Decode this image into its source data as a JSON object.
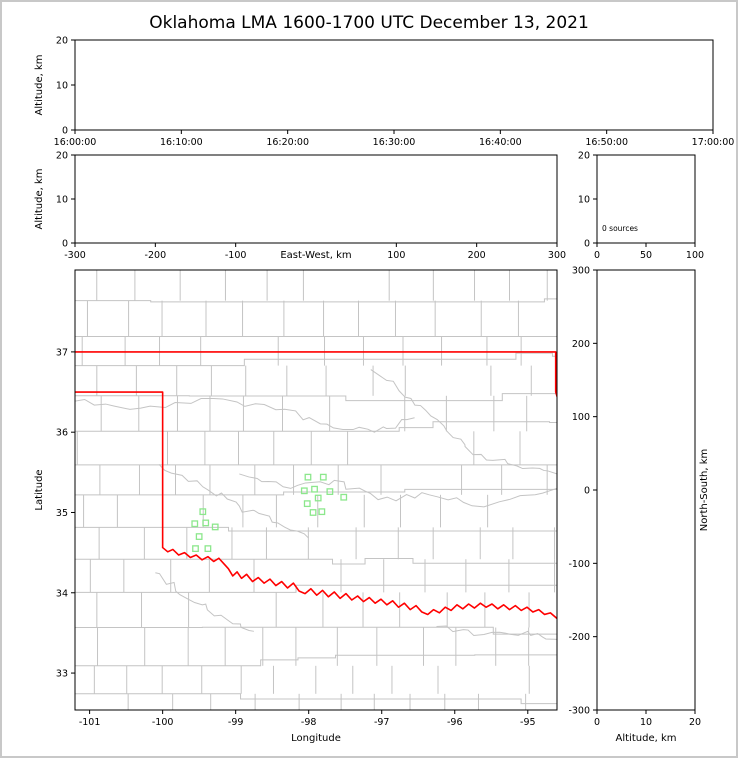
{
  "figure": {
    "title": "Oklahoma LMA 1600-1700 UTC December 13, 2021"
  },
  "colors": {
    "axis": "#000000",
    "state_border": "#ff0000",
    "county_line": "#c4c4c4",
    "river_line": "#c4c4c4",
    "station_marker": "#8ce78c",
    "background": "#ffffff",
    "figure_border": "#c8c8c8"
  },
  "chart_data": [
    {
      "id": "time-height",
      "type": "scatter",
      "ylabel": "Altitude, km",
      "xtick_labels": [
        "16:00:00",
        "16:10:00",
        "16:20:00",
        "16:30:00",
        "16:40:00",
        "16:50:00",
        "17:00:00"
      ],
      "ylim": [
        0,
        20
      ],
      "yticks": [
        0,
        10,
        20
      ],
      "points": []
    },
    {
      "id": "east-west-height",
      "type": "scatter",
      "xlabel": "East-West, km",
      "xlabel_inline": true,
      "ylabel": "Altitude, km",
      "xlim": [
        -300,
        300
      ],
      "xticks": [
        -300,
        -200,
        -100,
        100,
        200,
        300
      ],
      "ylim": [
        0,
        20
      ],
      "yticks": [
        0,
        10,
        20
      ],
      "points": []
    },
    {
      "id": "altitude-histogram",
      "type": "line",
      "annotation": "0 sources",
      "xlim": [
        0,
        100
      ],
      "xticks": [
        0,
        50,
        100
      ],
      "ylim": [
        0,
        20
      ],
      "yticks": [
        0,
        10,
        20
      ],
      "points": []
    },
    {
      "id": "plan-view",
      "type": "scatter",
      "xlabel": "Longitude",
      "ylabel": "Latitude",
      "xlim": [
        -101.2,
        -94.6
      ],
      "xticks": [
        -101,
        -100,
        -99,
        -98,
        -97,
        -96,
        -95
      ],
      "ylim": [
        32.54,
        38.02
      ],
      "yticks": [
        33,
        34,
        35,
        36,
        37
      ],
      "points": []
    },
    {
      "id": "height-north-south",
      "type": "scatter",
      "xlabel": "Altitude, km",
      "ylabel": "North-South, km",
      "ylabel_side": "right",
      "xlim": [
        0,
        20
      ],
      "xticks": [
        0,
        10,
        20
      ],
      "ylim": [
        -300,
        300
      ],
      "yticks": [
        -300,
        -200,
        -100,
        0,
        100,
        200,
        300
      ],
      "points": []
    }
  ],
  "map": {
    "stations": [
      [
        -98.01,
        35.44
      ],
      [
        -97.8,
        35.44
      ],
      [
        -98.06,
        35.27
      ],
      [
        -97.92,
        35.29
      ],
      [
        -97.71,
        35.26
      ],
      [
        -98.02,
        35.11
      ],
      [
        -97.94,
        35.0
      ],
      [
        -97.82,
        35.01
      ],
      [
        -97.52,
        35.19
      ],
      [
        -97.87,
        35.18
      ],
      [
        -99.45,
        35.01
      ],
      [
        -99.56,
        34.86
      ],
      [
        -99.41,
        34.87
      ],
      [
        -99.28,
        34.82
      ],
      [
        -99.5,
        34.7
      ],
      [
        -99.55,
        34.55
      ],
      [
        -99.38,
        34.55
      ]
    ],
    "state_border": [
      [
        [
          -101.25,
          37.0
        ],
        [
          -94.618,
          37.0
        ],
        [
          -94.618,
          36.5
        ],
        [
          -94.5,
          36.15
        ]
      ],
      [
        [
          -101.25,
          36.5
        ],
        [
          -100.0,
          36.5
        ],
        [
          -100.0,
          34.563
        ],
        [
          -99.93,
          34.51
        ],
        [
          -99.86,
          34.54
        ],
        [
          -99.78,
          34.47
        ],
        [
          -99.7,
          34.5
        ],
        [
          -99.62,
          34.44
        ],
        [
          -99.54,
          34.47
        ],
        [
          -99.46,
          34.41
        ],
        [
          -99.38,
          34.45
        ],
        [
          -99.3,
          34.39
        ],
        [
          -99.23,
          34.43
        ],
        [
          -99.17,
          34.37
        ],
        [
          -99.1,
          34.3
        ],
        [
          -99.04,
          34.21
        ],
        [
          -98.98,
          34.26
        ],
        [
          -98.92,
          34.18
        ],
        [
          -98.85,
          34.23
        ],
        [
          -98.77,
          34.14
        ],
        [
          -98.69,
          34.19
        ],
        [
          -98.61,
          34.12
        ],
        [
          -98.53,
          34.17
        ],
        [
          -98.45,
          34.09
        ],
        [
          -98.37,
          34.14
        ],
        [
          -98.29,
          34.06
        ],
        [
          -98.21,
          34.12
        ],
        [
          -98.13,
          34.02
        ],
        [
          -98.05,
          33.99
        ],
        [
          -97.97,
          34.05
        ],
        [
          -97.89,
          33.97
        ],
        [
          -97.81,
          34.03
        ],
        [
          -97.73,
          33.95
        ],
        [
          -97.65,
          34.01
        ],
        [
          -97.57,
          33.93
        ],
        [
          -97.49,
          33.99
        ],
        [
          -97.41,
          33.91
        ],
        [
          -97.33,
          33.96
        ],
        [
          -97.25,
          33.89
        ],
        [
          -97.17,
          33.94
        ],
        [
          -97.09,
          33.87
        ],
        [
          -97.01,
          33.92
        ],
        [
          -96.93,
          33.85
        ],
        [
          -96.85,
          33.9
        ],
        [
          -96.77,
          33.82
        ],
        [
          -96.69,
          33.87
        ],
        [
          -96.61,
          33.79
        ],
        [
          -96.53,
          33.84
        ],
        [
          -96.45,
          33.76
        ],
        [
          -96.37,
          33.73
        ],
        [
          -96.29,
          33.79
        ],
        [
          -96.21,
          33.75
        ],
        [
          -96.13,
          33.82
        ],
        [
          -96.05,
          33.78
        ],
        [
          -95.97,
          33.85
        ],
        [
          -95.89,
          33.8
        ],
        [
          -95.81,
          33.86
        ],
        [
          -95.73,
          33.81
        ],
        [
          -95.65,
          33.87
        ],
        [
          -95.57,
          33.82
        ],
        [
          -95.49,
          33.86
        ],
        [
          -95.41,
          33.8
        ],
        [
          -95.33,
          33.85
        ],
        [
          -95.25,
          33.79
        ],
        [
          -95.17,
          33.84
        ],
        [
          -95.09,
          33.78
        ],
        [
          -95.01,
          33.82
        ],
        [
          -94.93,
          33.76
        ],
        [
          -94.85,
          33.79
        ],
        [
          -94.77,
          33.73
        ],
        [
          -94.69,
          33.75
        ],
        [
          -94.6,
          33.68
        ]
      ]
    ],
    "rivers": [
      [
        [
          -98.95,
          35.48
        ],
        [
          -98.35,
          35.32
        ],
        [
          -97.65,
          35.4
        ],
        [
          -97.05,
          35.16
        ],
        [
          -96.35,
          35.22
        ],
        [
          -95.6,
          35.07
        ],
        [
          -94.6,
          35.3
        ]
      ],
      [
        [
          -101.25,
          36.38
        ],
        [
          -100.3,
          36.3
        ],
        [
          -99.3,
          36.42
        ],
        [
          -98.45,
          36.28
        ],
        [
          -97.75,
          36.1
        ],
        [
          -97.1,
          36.0
        ],
        [
          -96.55,
          36.18
        ]
      ],
      [
        [
          -100.05,
          35.6
        ],
        [
          -99.45,
          35.32
        ],
        [
          -98.95,
          35.08
        ],
        [
          -98.5,
          34.88
        ],
        [
          -98.0,
          34.68
        ]
      ],
      [
        [
          -100.1,
          34.25
        ],
        [
          -99.65,
          33.92
        ],
        [
          -99.2,
          33.72
        ],
        [
          -98.75,
          33.52
        ]
      ],
      [
        [
          -97.15,
          36.78
        ],
        [
          -96.6,
          36.42
        ],
        [
          -96.15,
          36.08
        ],
        [
          -95.75,
          35.72
        ],
        [
          -95.15,
          35.58
        ],
        [
          -94.6,
          35.48
        ]
      ],
      [
        [
          -96.25,
          33.58
        ],
        [
          -95.6,
          33.48
        ],
        [
          -95.0,
          33.52
        ],
        [
          -94.6,
          33.42
        ]
      ]
    ],
    "county_grid": {
      "seed": 7,
      "lon_min": -101.3,
      "lon_max": -94.5,
      "lat_min": 32.4,
      "lat_max": 38.15,
      "row_min": 0.34,
      "row_var": 0.14,
      "col_min": 0.44,
      "col_var": 0.22,
      "jog_prob": 0.22,
      "jog_size": 0.09
    }
  }
}
